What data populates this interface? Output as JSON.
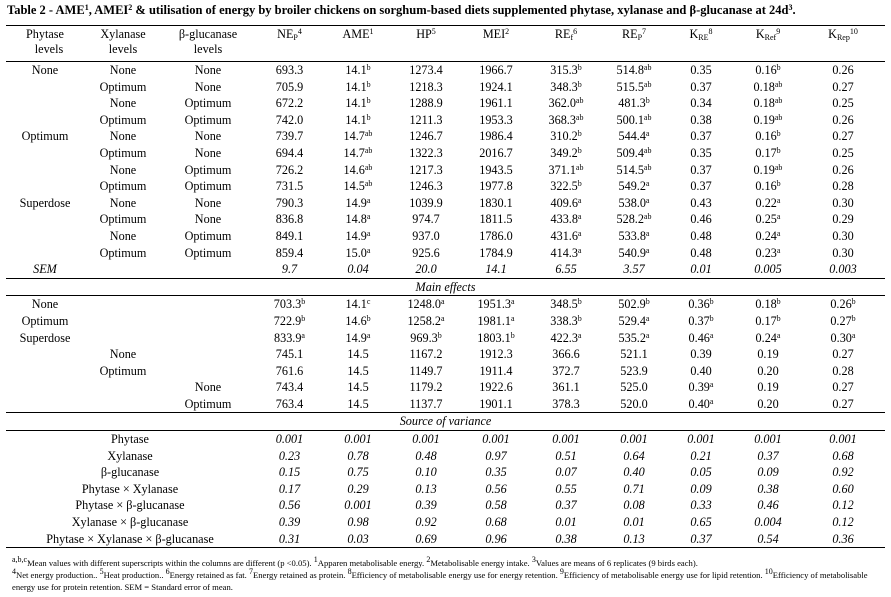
{
  "caption": {
    "text_a": "Table 2 - AME",
    "sup_a": "1",
    "text_b": ", AMEI",
    "sup_b": "2",
    "text_c": " & utilisation of energy by broiler chickens on sorghum-based diets supplemented phytase, xylanase and β-glucanase at 24d",
    "sup_c": "3",
    "text_d": "."
  },
  "headers": {
    "phytase": [
      "Phytase",
      "levels"
    ],
    "xylanase": [
      "Xylanase",
      "levels"
    ],
    "glucanase": [
      "β-glucanase",
      "levels"
    ],
    "cols": [
      {
        "base": "NE",
        "sub": "P",
        "sup": "4"
      },
      {
        "base": "AME",
        "sub": "",
        "sup": "1"
      },
      {
        "base": "HP",
        "sub": "",
        "sup": "5"
      },
      {
        "base": "MEI",
        "sub": "",
        "sup": "2"
      },
      {
        "base": "RE",
        "sub": "f",
        "sup": "6"
      },
      {
        "base": "RE",
        "sub": "P",
        "sup": "7"
      },
      {
        "base": "K",
        "sub": "RE",
        "sup": "8"
      },
      {
        "base": "K",
        "sub": "Ref",
        "sup": "9"
      },
      {
        "base": "K",
        "sub": "Rep",
        "sup": "10"
      }
    ]
  },
  "treatments": [
    {
      "p": "None",
      "x": "None",
      "g": "None",
      "v": [
        [
          "693.3",
          ""
        ],
        [
          "14.1",
          "b"
        ],
        [
          "1273.4",
          ""
        ],
        [
          "1966.7",
          ""
        ],
        [
          "315.3",
          "b"
        ],
        [
          "514.8",
          "ab"
        ],
        [
          "0.35",
          ""
        ],
        [
          "0.16",
          "b"
        ],
        [
          "0.26",
          ""
        ]
      ]
    },
    {
      "p": "",
      "x": "Optimum",
      "g": "None",
      "v": [
        [
          "705.9",
          ""
        ],
        [
          "14.1",
          "b"
        ],
        [
          "1218.3",
          ""
        ],
        [
          "1924.1",
          ""
        ],
        [
          "348.3",
          "b"
        ],
        [
          "515.5",
          "ab"
        ],
        [
          "0.37",
          ""
        ],
        [
          "0.18",
          "ab"
        ],
        [
          "0.27",
          ""
        ]
      ]
    },
    {
      "p": "",
      "x": "None",
      "g": "Optimum",
      "v": [
        [
          "672.2",
          ""
        ],
        [
          "14.1",
          "b"
        ],
        [
          "1288.9",
          ""
        ],
        [
          "1961.1",
          ""
        ],
        [
          "362.0",
          "ab"
        ],
        [
          "481.3",
          "b"
        ],
        [
          "0.34",
          ""
        ],
        [
          "0.18",
          "ab"
        ],
        [
          "0.25",
          ""
        ]
      ]
    },
    {
      "p": "",
      "x": "Optimum",
      "g": "Optimum",
      "v": [
        [
          "742.0",
          ""
        ],
        [
          "14.1",
          "b"
        ],
        [
          "1211.3",
          ""
        ],
        [
          "1953.3",
          ""
        ],
        [
          "368.3",
          "ab"
        ],
        [
          "500.1",
          "ab"
        ],
        [
          "0.38",
          ""
        ],
        [
          "0.19",
          "ab"
        ],
        [
          "0.26",
          ""
        ]
      ]
    },
    {
      "p": "Optimum",
      "x": "None",
      "g": "None",
      "v": [
        [
          "739.7",
          ""
        ],
        [
          "14.7",
          "ab"
        ],
        [
          "1246.7",
          ""
        ],
        [
          "1986.4",
          ""
        ],
        [
          "310.2",
          "b"
        ],
        [
          "544.4",
          "a"
        ],
        [
          "0.37",
          ""
        ],
        [
          "0.16",
          "b"
        ],
        [
          "0.27",
          ""
        ]
      ]
    },
    {
      "p": "",
      "x": "Optimum",
      "g": "None",
      "v": [
        [
          "694.4",
          ""
        ],
        [
          "14.7",
          "ab"
        ],
        [
          "1322.3",
          ""
        ],
        [
          "2016.7",
          ""
        ],
        [
          "349.2",
          "b"
        ],
        [
          "509.4",
          "ab"
        ],
        [
          "0.35",
          ""
        ],
        [
          "0.17",
          "b"
        ],
        [
          "0.25",
          ""
        ]
      ]
    },
    {
      "p": "",
      "x": "None",
      "g": "Optimum",
      "v": [
        [
          "726.2",
          ""
        ],
        [
          "14.6",
          "ab"
        ],
        [
          "1217.3",
          ""
        ],
        [
          "1943.5",
          ""
        ],
        [
          "371.1",
          "ab"
        ],
        [
          "514.5",
          "ab"
        ],
        [
          "0.37",
          ""
        ],
        [
          "0.19",
          "ab"
        ],
        [
          "0.26",
          ""
        ]
      ]
    },
    {
      "p": "",
      "x": "Optimum",
      "g": "Optimum",
      "v": [
        [
          "731.5",
          ""
        ],
        [
          "14.5",
          "ab"
        ],
        [
          "1246.3",
          ""
        ],
        [
          "1977.8",
          ""
        ],
        [
          "322.5",
          "b"
        ],
        [
          "549.2",
          "a"
        ],
        [
          "0.37",
          ""
        ],
        [
          "0.16",
          "b"
        ],
        [
          "0.28",
          ""
        ]
      ]
    },
    {
      "p": "Superdose",
      "x": "None",
      "g": "None",
      "v": [
        [
          "790.3",
          ""
        ],
        [
          "14.9",
          "a"
        ],
        [
          "1039.9",
          ""
        ],
        [
          "1830.1",
          ""
        ],
        [
          "409.6",
          "a"
        ],
        [
          "538.0",
          "a"
        ],
        [
          "0.43",
          ""
        ],
        [
          "0.22",
          "a"
        ],
        [
          "0.30",
          ""
        ]
      ]
    },
    {
      "p": "",
      "x": "Optimum",
      "g": "None",
      "v": [
        [
          "836.8",
          ""
        ],
        [
          "14.8",
          "a"
        ],
        [
          "974.7",
          ""
        ],
        [
          "1811.5",
          ""
        ],
        [
          "433.8",
          "a"
        ],
        [
          "528.2",
          "ab"
        ],
        [
          "0.46",
          ""
        ],
        [
          "0.25",
          "a"
        ],
        [
          "0.29",
          ""
        ]
      ]
    },
    {
      "p": "",
      "x": "None",
      "g": "Optimum",
      "v": [
        [
          "849.1",
          ""
        ],
        [
          "14.9",
          "a"
        ],
        [
          "937.0",
          ""
        ],
        [
          "1786.0",
          ""
        ],
        [
          "431.6",
          "a"
        ],
        [
          "533.8",
          "a"
        ],
        [
          "0.48",
          ""
        ],
        [
          "0.24",
          "a"
        ],
        [
          "0.30",
          ""
        ]
      ]
    },
    {
      "p": "",
      "x": "Optimum",
      "g": "Optimum",
      "v": [
        [
          "859.4",
          ""
        ],
        [
          "15.0",
          "a"
        ],
        [
          "925.6",
          ""
        ],
        [
          "1784.9",
          ""
        ],
        [
          "414.3",
          "a"
        ],
        [
          "540.9",
          "a"
        ],
        [
          "0.48",
          ""
        ],
        [
          "0.23",
          "a"
        ],
        [
          "0.30",
          ""
        ]
      ]
    }
  ],
  "sem": {
    "label": "SEM",
    "v": [
      "9.7",
      "0.04",
      "20.0",
      "14.1",
      "6.55",
      "3.57",
      "0.01",
      "0.005",
      "0.003"
    ]
  },
  "main_effects_title": "Main effects",
  "main_effects": [
    {
      "p": "None",
      "x": "",
      "g": "",
      "v": [
        [
          "703.3",
          "b"
        ],
        [
          "14.1",
          "c"
        ],
        [
          "1248.0",
          "a"
        ],
        [
          "1951.3",
          "a"
        ],
        [
          "348.5",
          "b"
        ],
        [
          "502.9",
          "b"
        ],
        [
          "0.36",
          "b"
        ],
        [
          "0.18",
          "b"
        ],
        [
          "0.26",
          "b"
        ]
      ]
    },
    {
      "p": "Optimum",
      "x": "",
      "g": "",
      "v": [
        [
          "722.9",
          "b"
        ],
        [
          "14.6",
          "b"
        ],
        [
          "1258.2",
          "a"
        ],
        [
          "1981.1",
          "a"
        ],
        [
          "338.3",
          "b"
        ],
        [
          "529.4",
          "a"
        ],
        [
          "0.37",
          "b"
        ],
        [
          "0.17",
          "b"
        ],
        [
          "0.27",
          "b"
        ]
      ]
    },
    {
      "p": "Superdose",
      "x": "",
      "g": "",
      "v": [
        [
          "833.9",
          "a"
        ],
        [
          "14.9",
          "a"
        ],
        [
          "969.3",
          "b"
        ],
        [
          "1803.1",
          "b"
        ],
        [
          "422.3",
          "a"
        ],
        [
          "535.2",
          "a"
        ],
        [
          "0.46",
          "a"
        ],
        [
          "0.24",
          "a"
        ],
        [
          "0.30",
          "a"
        ]
      ]
    },
    {
      "p": "",
      "x": "None",
      "g": "",
      "v": [
        [
          "745.1",
          ""
        ],
        [
          "14.5",
          ""
        ],
        [
          "1167.2",
          ""
        ],
        [
          "1912.3",
          ""
        ],
        [
          "366.6",
          ""
        ],
        [
          "521.1",
          ""
        ],
        [
          "0.39",
          ""
        ],
        [
          "0.19",
          ""
        ],
        [
          "0.27",
          ""
        ]
      ]
    },
    {
      "p": "",
      "x": "Optimum",
      "g": "",
      "v": [
        [
          "761.6",
          ""
        ],
        [
          "14.5",
          ""
        ],
        [
          "1149.7",
          ""
        ],
        [
          "1911.4",
          ""
        ],
        [
          "372.7",
          ""
        ],
        [
          "523.9",
          ""
        ],
        [
          "0.40",
          ""
        ],
        [
          "0.20",
          ""
        ],
        [
          "0.28",
          ""
        ]
      ]
    },
    {
      "p": "",
      "x": "",
      "g": "None",
      "v": [
        [
          "743.4",
          ""
        ],
        [
          "14.5",
          ""
        ],
        [
          "1179.2",
          ""
        ],
        [
          "1922.6",
          ""
        ],
        [
          "361.1",
          ""
        ],
        [
          "525.0",
          ""
        ],
        [
          "0.39",
          "a"
        ],
        [
          "0.19",
          ""
        ],
        [
          "0.27",
          ""
        ]
      ]
    },
    {
      "p": "",
      "x": "",
      "g": "Optimum",
      "v": [
        [
          "763.4",
          ""
        ],
        [
          "14.5",
          ""
        ],
        [
          "1137.7",
          ""
        ],
        [
          "1901.1",
          ""
        ],
        [
          "378.3",
          ""
        ],
        [
          "520.0",
          ""
        ],
        [
          "0.40",
          "a"
        ],
        [
          "0.20",
          ""
        ],
        [
          "0.27",
          ""
        ]
      ]
    }
  ],
  "sov_title": "Source of variance",
  "sov": [
    {
      "label": "Phytase",
      "v": [
        "0.001",
        "0.001",
        "0.001",
        "0.001",
        "0.001",
        "0.001",
        "0.001",
        "0.001",
        "0.001"
      ]
    },
    {
      "label": "Xylanase",
      "v": [
        "0.23",
        "0.78",
        "0.48",
        "0.97",
        "0.51",
        "0.64",
        "0.21",
        "0.37",
        "0.68"
      ]
    },
    {
      "label": "β-glucanase",
      "v": [
        "0.15",
        "0.75",
        "0.10",
        "0.35",
        "0.07",
        "0.40",
        "0.05",
        "0.09",
        "0.92"
      ]
    },
    {
      "label": "Phytase × Xylanase",
      "v": [
        "0.17",
        "0.29",
        "0.13",
        "0.56",
        "0.55",
        "0.71",
        "0.09",
        "0.38",
        "0.60"
      ]
    },
    {
      "label": "Phytase × β-glucanase",
      "v": [
        "0.56",
        "0.001",
        "0.39",
        "0.58",
        "0.37",
        "0.08",
        "0.33",
        "0.46",
        "0.12"
      ]
    },
    {
      "label": "Xylanase × β-glucanase",
      "v": [
        "0.39",
        "0.98",
        "0.92",
        "0.68",
        "0.01",
        "0.01",
        "0.65",
        "0.004",
        "0.12"
      ]
    },
    {
      "label": "Phytase × Xylanase × β-glucanase",
      "v": [
        "0.31",
        "0.03",
        "0.69",
        "0.96",
        "0.38",
        "0.13",
        "0.37",
        "0.54",
        "0.36"
      ]
    }
  ],
  "footnotes": [
    {
      "sup": "a,b,c",
      "text": "Mean values with different superscripts within the columns are different (p <0.05). "
    },
    {
      "sup": "1",
      "text": "Apparen metabolisable energy. "
    },
    {
      "sup": "2",
      "text": "Metabolisable energy intake. "
    },
    {
      "sup": "3",
      "text": "Values are means of 6 replicates (9 birds each)."
    },
    {
      "sup": "4",
      "text": "Net energy production.. "
    },
    {
      "sup": "5",
      "text": "Heat production.. "
    },
    {
      "sup": "6",
      "text": "Energy retained as fat. "
    },
    {
      "sup": "7",
      "text": "Energy retained as protein. "
    },
    {
      "sup": "8",
      "text": "Efficiency of metabolisable energy use for energy retention. "
    },
    {
      "sup": "9",
      "text": "Efficiency of metabolisable energy use for lipid retention. "
    },
    {
      "sup": "10",
      "text": "Efficiency of metabolisable energy use for protein retention. SEM = Standard error of mean."
    }
  ]
}
